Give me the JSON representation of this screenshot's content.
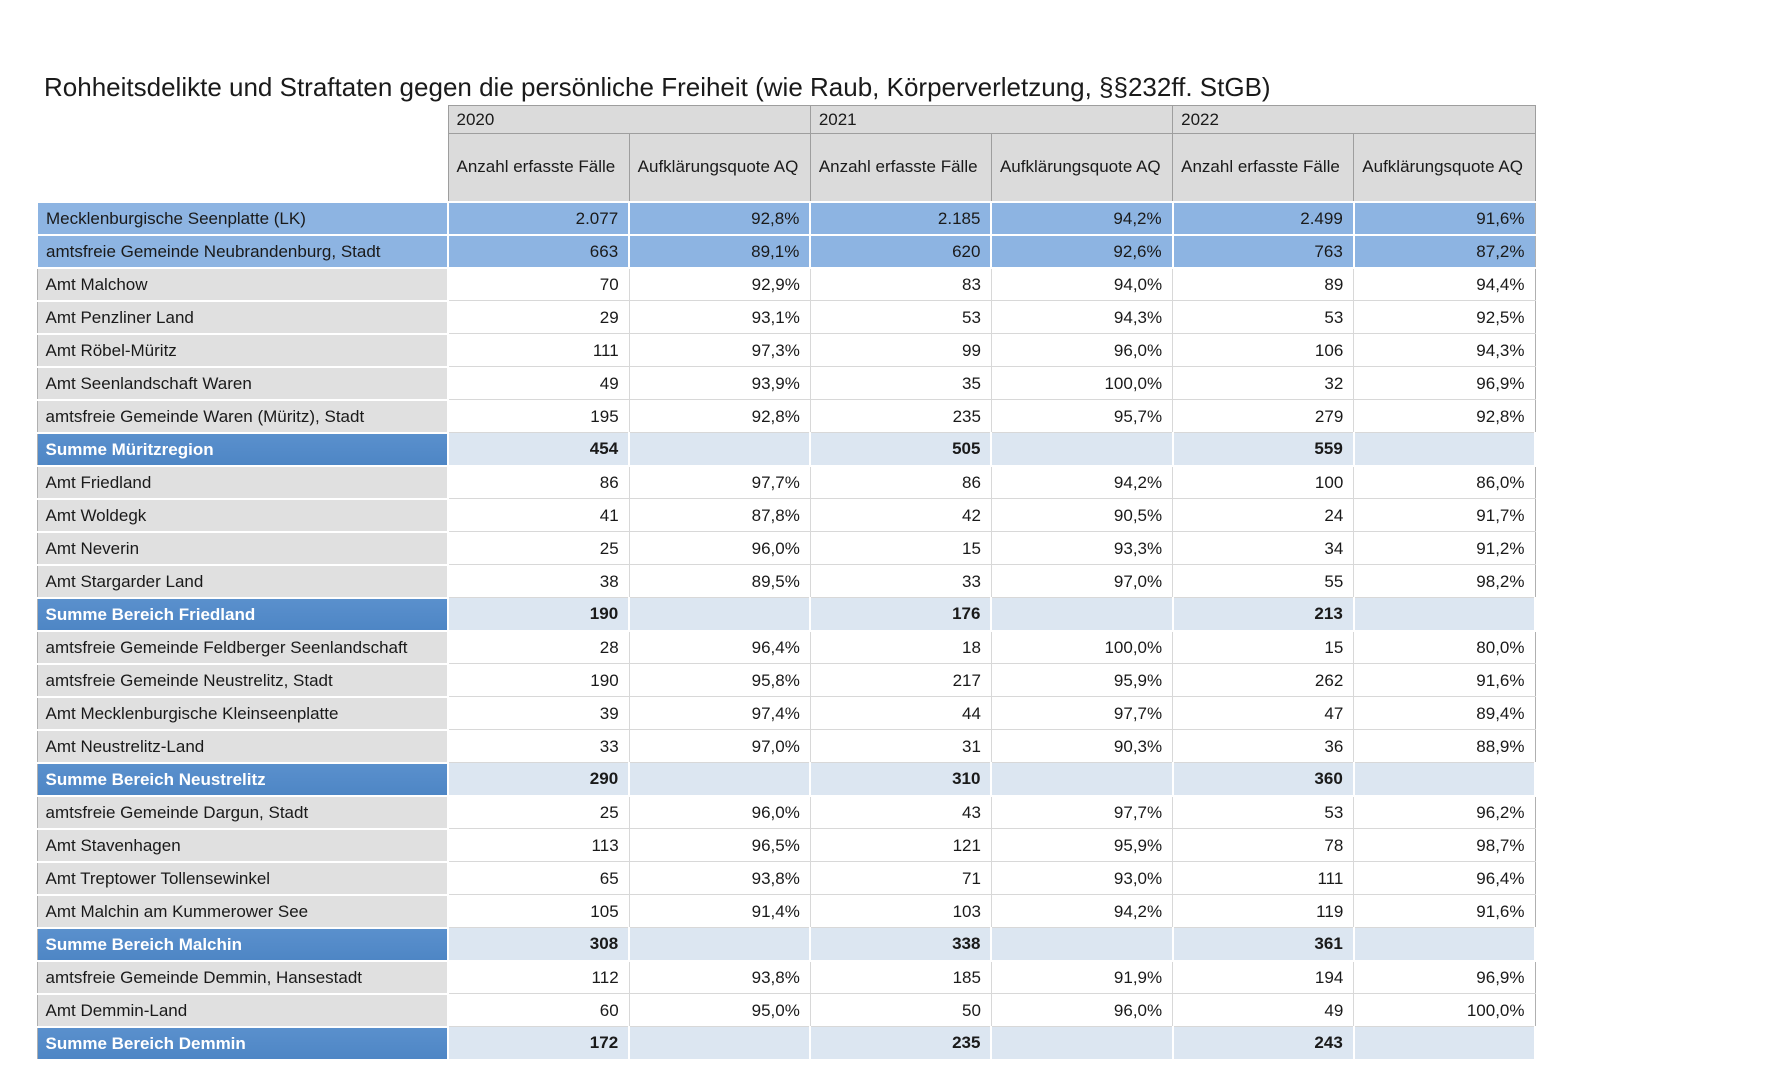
{
  "title": "Rohheitsdelikte und Straftaten gegen die persönliche Freiheit (wie Raub, Körperverletzung, §§232ff. StGB)",
  "colors": {
    "header_bg": "#DBDBDB",
    "label_bg": "#E0E0E0",
    "highlight_row": "#8DB4E2",
    "sum_label": "#4E86C5",
    "sum_label_light": "#5A90CD",
    "sum_data": "#DCE6F1"
  },
  "table": {
    "year_headers": [
      "2020",
      "2021",
      "2022"
    ],
    "col_headers": [
      "Anzahl erfasste Fälle",
      "Aufklärungsquote AQ"
    ],
    "rows": [
      {
        "label": "Mecklenburgische Seenplatte (LK)",
        "style": "highlight",
        "values": [
          "2.077",
          "92,8%",
          "2.185",
          "94,2%",
          "2.499",
          "91,6%"
        ]
      },
      {
        "label": "amtsfreie Gemeinde Neubrandenburg, Stadt",
        "style": "highlight",
        "values": [
          "663",
          "89,1%",
          "620",
          "92,6%",
          "763",
          "87,2%"
        ]
      },
      {
        "label": "Amt Malchow",
        "style": "normal",
        "values": [
          "70",
          "92,9%",
          "83",
          "94,0%",
          "89",
          "94,4%"
        ]
      },
      {
        "label": "Amt Penzliner Land",
        "style": "normal",
        "values": [
          "29",
          "93,1%",
          "53",
          "94,3%",
          "53",
          "92,5%"
        ]
      },
      {
        "label": "Amt Röbel-Müritz",
        "style": "normal",
        "values": [
          "111",
          "97,3%",
          "99",
          "96,0%",
          "106",
          "94,3%"
        ]
      },
      {
        "label": "Amt Seenlandschaft Waren",
        "style": "normal",
        "values": [
          "49",
          "93,9%",
          "35",
          "100,0%",
          "32",
          "96,9%"
        ]
      },
      {
        "label": "amtsfreie Gemeinde Waren (Müritz), Stadt",
        "style": "normal",
        "values": [
          "195",
          "92,8%",
          "235",
          "95,7%",
          "279",
          "92,8%"
        ]
      },
      {
        "label": "Summe Müritzregion",
        "style": "sum",
        "values": [
          "454",
          "",
          "505",
          "",
          "559",
          ""
        ]
      },
      {
        "label": "Amt Friedland",
        "style": "normal",
        "values": [
          "86",
          "97,7%",
          "86",
          "94,2%",
          "100",
          "86,0%"
        ]
      },
      {
        "label": "Amt Woldegk",
        "style": "normal",
        "values": [
          "41",
          "87,8%",
          "42",
          "90,5%",
          "24",
          "91,7%"
        ]
      },
      {
        "label": "Amt Neverin",
        "style": "normal",
        "values": [
          "25",
          "96,0%",
          "15",
          "93,3%",
          "34",
          "91,2%"
        ]
      },
      {
        "label": "Amt Stargarder Land",
        "style": "normal",
        "values": [
          "38",
          "89,5%",
          "33",
          "97,0%",
          "55",
          "98,2%"
        ]
      },
      {
        "label": "Summe Bereich Friedland",
        "style": "sum",
        "values": [
          "190",
          "",
          "176",
          "",
          "213",
          ""
        ]
      },
      {
        "label": "amtsfreie Gemeinde Feldberger Seenlandschaft",
        "style": "normal",
        "tall": true,
        "values": [
          "28",
          "96,4%",
          "18",
          "100,0%",
          "15",
          "80,0%"
        ]
      },
      {
        "label": "amtsfreie Gemeinde Neustrelitz, Stadt",
        "style": "normal",
        "values": [
          "190",
          "95,8%",
          "217",
          "95,9%",
          "262",
          "91,6%"
        ]
      },
      {
        "label": "Amt Mecklenburgische Kleinseenplatte",
        "style": "normal",
        "values": [
          "39",
          "97,4%",
          "44",
          "97,7%",
          "47",
          "89,4%"
        ]
      },
      {
        "label": "Amt Neustrelitz-Land",
        "style": "normal",
        "values": [
          "33",
          "97,0%",
          "31",
          "90,3%",
          "36",
          "88,9%"
        ]
      },
      {
        "label": "Summe Bereich Neustrelitz",
        "style": "sum",
        "values": [
          "290",
          "",
          "310",
          "",
          "360",
          ""
        ]
      },
      {
        "label": "amtsfreie Gemeinde Dargun, Stadt",
        "style": "normal",
        "values": [
          "25",
          "96,0%",
          "43",
          "97,7%",
          "53",
          "96,2%"
        ]
      },
      {
        "label": "Amt Stavenhagen",
        "style": "normal",
        "values": [
          "113",
          "96,5%",
          "121",
          "95,9%",
          "78",
          "98,7%"
        ]
      },
      {
        "label": "Amt Treptower Tollensewinkel",
        "style": "normal",
        "values": [
          "65",
          "93,8%",
          "71",
          "93,0%",
          "111",
          "96,4%"
        ]
      },
      {
        "label": "Amt Malchin am Kummerower See",
        "style": "normal",
        "values": [
          "105",
          "91,4%",
          "103",
          "94,2%",
          "119",
          "91,6%"
        ]
      },
      {
        "label": "Summe Bereich Malchin",
        "style": "sum",
        "values": [
          "308",
          "",
          "338",
          "",
          "361",
          ""
        ]
      },
      {
        "label": "amtsfreie Gemeinde Demmin, Hansestadt",
        "style": "normal",
        "values": [
          "112",
          "93,8%",
          "185",
          "91,9%",
          "194",
          "96,9%"
        ]
      },
      {
        "label": "Amt Demmin-Land",
        "style": "normal",
        "values": [
          "60",
          "95,0%",
          "50",
          "96,0%",
          "49",
          "100,0%"
        ]
      },
      {
        "label": "Summe Bereich Demmin",
        "style": "sum",
        "values": [
          "172",
          "",
          "235",
          "",
          "243",
          ""
        ]
      }
    ]
  }
}
